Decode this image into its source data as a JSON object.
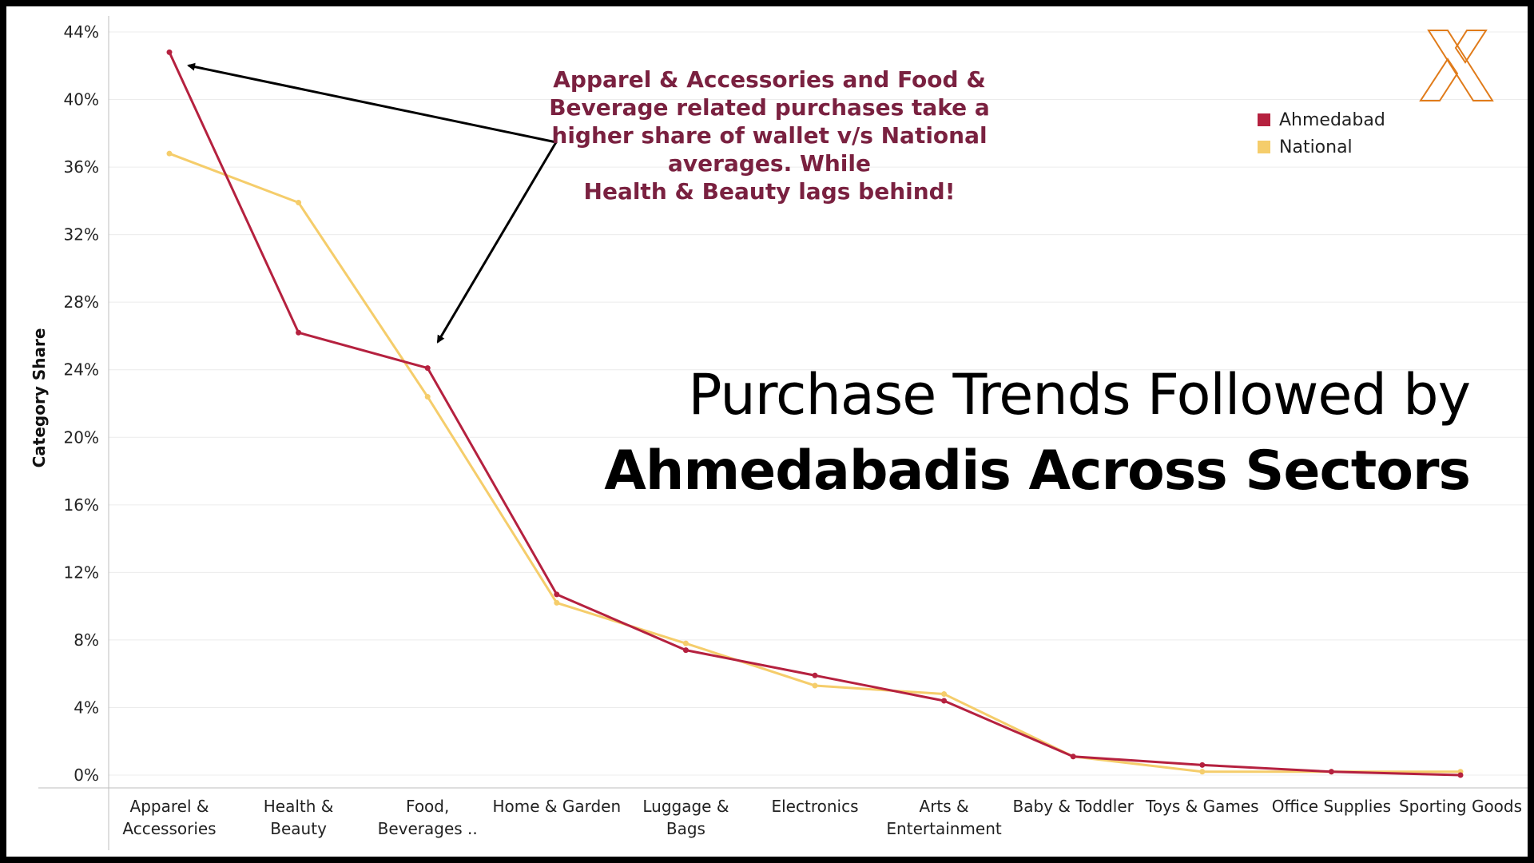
{
  "title": {
    "line1": "Purchase Trends Followed by",
    "line2": "Ahmedabadis Across Sectors"
  },
  "annotation": {
    "lines": [
      "Apparel & Accessories and Food &",
      "Beverage related purchases take a",
      "higher share of wallet v/s National",
      "averages. While",
      "Health & Beauty lags behind!"
    ]
  },
  "logo": {
    "icon": "x-logo-icon",
    "color": "#e07b1a"
  },
  "chart_data": {
    "type": "line",
    "ylabel": "Category Share",
    "xlabel": "",
    "ylim": [
      0,
      44
    ],
    "y_ticks": [
      "44%",
      "40%",
      "36%",
      "32%",
      "28%",
      "24%",
      "20%",
      "16%",
      "12%",
      "8%",
      "4%",
      "0%"
    ],
    "categories": [
      [
        "Apparel &",
        "Accessories"
      ],
      [
        "Health &",
        "Beauty"
      ],
      [
        "Food,",
        "Beverages .."
      ],
      [
        "Home & Garden"
      ],
      [
        "Luggage &",
        "Bags"
      ],
      [
        "Electronics"
      ],
      [
        "Arts &",
        "Entertainment"
      ],
      [
        "Baby & Toddler"
      ],
      [
        "Toys & Games"
      ],
      [
        "Office Supplies"
      ],
      [
        "Sporting Goods"
      ]
    ],
    "grid": "horizontal",
    "legend_position": "top-right",
    "series": [
      {
        "name": "Ahmedabad",
        "color": "#b5213f",
        "values": [
          42.8,
          26.2,
          24.1,
          10.7,
          7.4,
          5.9,
          4.4,
          1.1,
          0.6,
          0.2,
          0.0
        ]
      },
      {
        "name": "National",
        "color": "#f5cd6b",
        "values": [
          36.8,
          33.9,
          22.4,
          10.2,
          7.8,
          5.3,
          4.8,
          1.1,
          0.2,
          0.2,
          0.2
        ]
      }
    ]
  }
}
